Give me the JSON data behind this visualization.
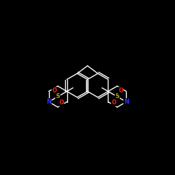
{
  "bg_color": "#000000",
  "bond_color": "#ffffff",
  "S_color": "#c8a000",
  "O_color": "#ff2020",
  "N_color": "#3333ff",
  "bond_lw": 1.0,
  "figsize": [
    2.5,
    2.5
  ],
  "dpi": 100,
  "xlim": [
    0,
    250
  ],
  "ylim": [
    0,
    250
  ]
}
